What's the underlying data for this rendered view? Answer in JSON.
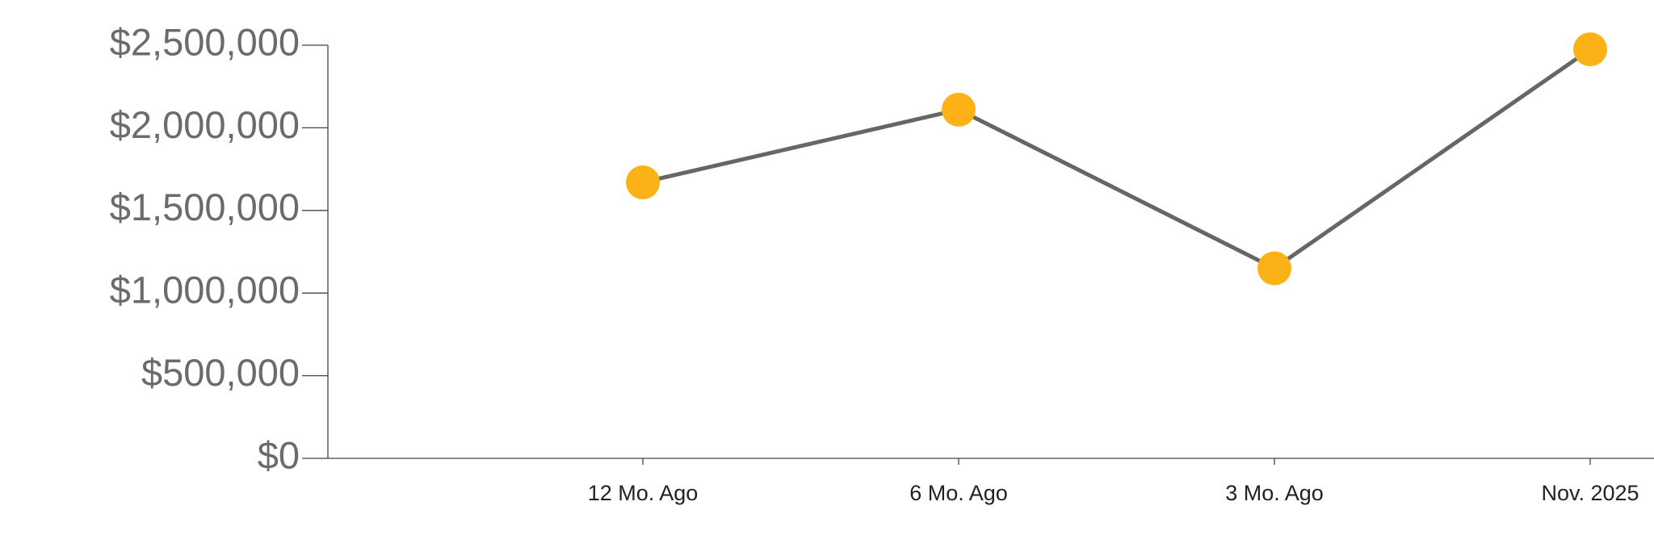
{
  "chart_data": {
    "type": "line",
    "categories": [
      "12 Mo. Ago",
      "6 Mo. Ago",
      "3 Mo. Ago",
      "Nov. 2025"
    ],
    "series": [
      {
        "values": [
          1670000,
          2110000,
          1150000,
          2475000
        ],
        "color": "#666666",
        "marker_color": "#fbb217"
      }
    ],
    "ylim": [
      0,
      2500000
    ],
    "yticks": [
      {
        "value": 0,
        "label": "$0"
      },
      {
        "value": 500000,
        "label": "$500,000"
      },
      {
        "value": 1000000,
        "label": "$1,000,000"
      },
      {
        "value": 1500000,
        "label": "$1,500,000"
      },
      {
        "value": 2000000,
        "label": "$2,000,000"
      },
      {
        "value": 2500000,
        "label": "$2,500,000"
      }
    ]
  }
}
